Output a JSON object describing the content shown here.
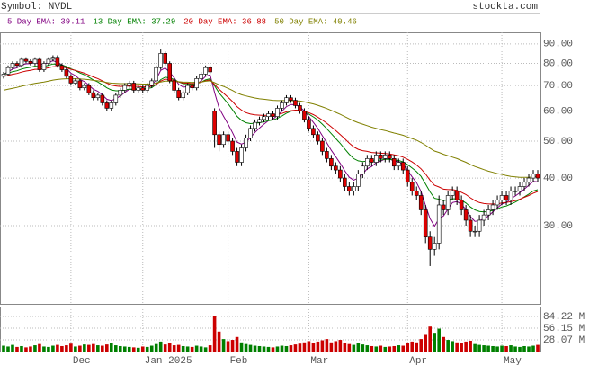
{
  "chart_data": {
    "type": "candlestick",
    "title": "Symbol: NVDL",
    "source": "stockta.com",
    "log_scale": true,
    "grid": true,
    "up_color": "#ffffff",
    "down_color": "#dd0000",
    "volume_up_color": "#008000",
    "volume_down_color": "#cc0000",
    "ylim": [
      18.7,
      96.5
    ],
    "yticks": [
      {
        "value": 90,
        "label": "90.00"
      },
      {
        "value": 80,
        "label": "80.00"
      },
      {
        "value": 70,
        "label": "70.00"
      },
      {
        "value": 60,
        "label": "60.00"
      },
      {
        "value": 50,
        "label": "50.00"
      },
      {
        "value": 40,
        "label": "40.00"
      },
      {
        "value": 30,
        "label": "30.00"
      }
    ],
    "volume_ylim": [
      0,
      108
    ],
    "volume_yticks": [
      {
        "value": 84.22,
        "label": "84.22 M"
      },
      {
        "value": 56.15,
        "label": "56.15 M"
      },
      {
        "value": 28.07,
        "label": "28.07 M"
      }
    ],
    "categories": [
      null,
      null,
      null,
      null,
      null,
      null,
      null,
      null,
      null,
      null,
      null,
      null,
      null,
      null,
      null,
      "Dec",
      null,
      null,
      null,
      null,
      null,
      null,
      null,
      null,
      null,
      null,
      null,
      null,
      null,
      null,
      null,
      "Jan 2025",
      null,
      null,
      null,
      null,
      null,
      null,
      null,
      null,
      null,
      null,
      null,
      null,
      null,
      null,
      null,
      null,
      null,
      null,
      "Feb",
      null,
      null,
      null,
      null,
      null,
      null,
      null,
      null,
      null,
      null,
      null,
      null,
      null,
      null,
      null,
      null,
      null,
      "Mar",
      null,
      null,
      null,
      null,
      null,
      null,
      null,
      null,
      null,
      null,
      null,
      null,
      null,
      null,
      null,
      null,
      null,
      null,
      null,
      null,
      null,
      "Apr",
      null,
      null,
      null,
      null,
      null,
      null,
      null,
      null,
      null,
      null,
      null,
      null,
      null,
      null,
      null,
      null,
      null,
      null,
      null,
      null,
      "May",
      null,
      null,
      null,
      null,
      null,
      null,
      null,
      null
    ],
    "open": [
      74,
      75,
      78,
      80,
      79,
      82,
      81,
      80,
      82,
      77,
      80,
      82,
      83,
      79,
      77,
      74,
      71,
      72,
      69,
      70,
      67,
      65,
      66,
      63,
      61,
      63,
      66,
      68,
      70,
      71,
      68,
      69,
      68,
      70,
      72,
      78,
      85,
      80,
      72,
      68,
      65,
      67,
      70,
      69,
      73,
      75,
      78,
      60,
      52,
      49,
      52,
      50,
      47,
      44,
      48,
      51,
      54,
      56,
      57,
      58,
      59,
      58,
      61,
      63,
      65,
      64,
      62,
      60,
      57,
      54,
      52,
      50,
      47,
      45,
      43,
      42,
      40,
      38,
      37,
      38,
      41,
      43,
      45,
      44,
      46,
      45,
      46,
      45,
      43,
      44,
      42,
      39,
      37,
      36,
      33,
      28,
      26,
      27,
      34,
      33,
      36,
      37,
      35,
      33,
      31,
      29,
      29,
      31,
      32,
      33,
      34,
      35,
      36,
      35,
      37,
      37,
      38,
      39,
      40,
      41
    ],
    "high": [
      76,
      79,
      81,
      81,
      83,
      83,
      82,
      83,
      83,
      81,
      83,
      84,
      84,
      80,
      78,
      75,
      73,
      73,
      71,
      71,
      68,
      67,
      67,
      64,
      64,
      67,
      69,
      71,
      72,
      72,
      70,
      70,
      71,
      73,
      79,
      87,
      86,
      81,
      73,
      69,
      68,
      71,
      71,
      74,
      76,
      79,
      79,
      61,
      53,
      53,
      53,
      51,
      48,
      49,
      52,
      55,
      57,
      58,
      59,
      60,
      60,
      62,
      64,
      66,
      66,
      65,
      63,
      61,
      58,
      55,
      53,
      51,
      48,
      46,
      44,
      43,
      41,
      39,
      39,
      42,
      44,
      46,
      46,
      47,
      47,
      47,
      47,
      46,
      45,
      45,
      43,
      40,
      38,
      37,
      34,
      29,
      28,
      36,
      35,
      37,
      38,
      38,
      36,
      34,
      32,
      30,
      32,
      33,
      34,
      35,
      36,
      37,
      37,
      38,
      38,
      39,
      40,
      41,
      42,
      42
    ],
    "low": [
      73,
      74,
      77,
      78,
      78,
      80,
      79,
      79,
      76,
      76,
      79,
      81,
      78,
      76,
      73,
      70,
      70,
      68,
      68,
      66,
      64,
      64,
      62,
      60,
      60,
      62,
      65,
      67,
      69,
      67,
      67,
      67,
      67,
      69,
      71,
      77,
      79,
      71,
      67,
      64,
      64,
      66,
      68,
      68,
      72,
      74,
      75,
      48,
      47,
      48,
      49,
      46,
      43,
      43,
      47,
      50,
      53,
      55,
      56,
      57,
      57,
      57,
      60,
      62,
      63,
      61,
      59,
      56,
      53,
      51,
      49,
      46,
      44,
      42,
      41,
      39,
      37,
      36,
      36,
      37,
      40,
      42,
      43,
      43,
      44,
      44,
      44,
      42,
      42,
      41,
      38,
      36,
      35,
      32,
      27,
      23.5,
      25,
      26,
      32,
      32,
      35,
      34,
      32,
      30,
      28,
      28,
      28,
      30,
      31,
      32,
      33,
      34,
      34,
      34,
      36,
      36,
      37,
      38,
      39,
      39
    ],
    "close": [
      75,
      78,
      80,
      79,
      82,
      81,
      80,
      82,
      77,
      80,
      82,
      83,
      79,
      77,
      74,
      71,
      72,
      69,
      70,
      67,
      65,
      66,
      63,
      61,
      63,
      66,
      68,
      70,
      71,
      68,
      69,
      68,
      70,
      72,
      78,
      85,
      80,
      72,
      68,
      65,
      67,
      70,
      69,
      73,
      75,
      78,
      76,
      52,
      49,
      52,
      50,
      47,
      44,
      48,
      51,
      54,
      56,
      57,
      58,
      59,
      58,
      61,
      63,
      65,
      64,
      62,
      60,
      57,
      54,
      52,
      50,
      47,
      45,
      43,
      42,
      40,
      38,
      37,
      38,
      41,
      43,
      45,
      44,
      46,
      45,
      46,
      45,
      43,
      44,
      42,
      39,
      37,
      36,
      33,
      28,
      26,
      27,
      34,
      33,
      36,
      37,
      35,
      33,
      31,
      29,
      29,
      31,
      32,
      33,
      34,
      35,
      36,
      35,
      37,
      37,
      38,
      39,
      40,
      41,
      40
    ],
    "volume": [
      14,
      12,
      16,
      11,
      13,
      10,
      12,
      15,
      18,
      12,
      11,
      14,
      16,
      13,
      15,
      19,
      12,
      14,
      17,
      16,
      18,
      15,
      14,
      17,
      20,
      15,
      13,
      12,
      11,
      10,
      9,
      12,
      11,
      14,
      18,
      24,
      17,
      20,
      15,
      16,
      13,
      12,
      11,
      14,
      12,
      10,
      15,
      86,
      48,
      30,
      25,
      28,
      35,
      22,
      18,
      16,
      14,
      13,
      12,
      11,
      10,
      12,
      14,
      13,
      15,
      17,
      19,
      22,
      25,
      20,
      24,
      27,
      30,
      22,
      25,
      28,
      20,
      18,
      16,
      21,
      17,
      15,
      13,
      12,
      14,
      11,
      12,
      13,
      15,
      14,
      20,
      24,
      22,
      30,
      40,
      60,
      45,
      55,
      35,
      28,
      25,
      22,
      20,
      24,
      26,
      18,
      16,
      15,
      14,
      13,
      12,
      14,
      13,
      15,
      12,
      11,
      13,
      12,
      14,
      16
    ],
    "series": [
      {
        "name": "5 Day EMA: 39.11",
        "color": "#800080",
        "values": [
          75,
          76,
          77.3,
          77.9,
          79.3,
          79.8,
          79.9,
          80.6,
          79.4,
          79.6,
          80.4,
          81.3,
          80.5,
          79.3,
          77.6,
          75.4,
          74.3,
          72.5,
          71.7,
          70.1,
          68.4,
          67.6,
          66.1,
          64.4,
          63.9,
          64.6,
          65.7,
          67.1,
          68.4,
          68.3,
          68.5,
          68.3,
          68.9,
          69.9,
          72.6,
          76.7,
          77.8,
          75.9,
          73.3,
          70.5,
          69.3,
          69.5,
          69.3,
          70.5,
          72,
          74,
          74.7,
          67.1,
          61.1,
          58.1,
          55.4,
          52.6,
          49.7,
          49.1,
          49.7,
          51.1,
          52.7,
          54.1,
          55.4,
          56.6,
          57.1,
          58.4,
          59.9,
          61.6,
          62.4,
          62.3,
          61.5,
          60,
          58,
          56,
          54,
          51.7,
          49.5,
          47.3,
          45.5,
          43.7,
          41.8,
          40.2,
          39.5,
          40,
          41,
          42.3,
          42.9,
          43.9,
          44.3,
          44.9,
          44.9,
          44.3,
          44.2,
          43.5,
          42,
          40.3,
          38.9,
          36.9,
          33.9,
          31.3,
          29.9,
          31.3,
          31.8,
          33.2,
          34.5,
          34.7,
          34.1,
          33.1,
          31.7,
          30.8,
          30.9,
          31.3,
          31.8,
          32.6,
          33.4,
          34.2,
          34.5,
          35.3,
          35.9,
          36.6,
          37.4,
          38.3,
          39.2,
          39.11
        ]
      },
      {
        "name": "13 Day EMA: 37.29",
        "color": "#008000",
        "values": [
          75,
          75.4,
          76.1,
          76.5,
          77.3,
          77.8,
          78.1,
          78.7,
          78.4,
          78.6,
          79.1,
          79.7,
          79.6,
          79.2,
          78.5,
          77.4,
          76.6,
          75.5,
          74.7,
          73.6,
          72.4,
          71.5,
          70.3,
          69,
          68.1,
          67.8,
          67.8,
          68.1,
          68.5,
          68.4,
          68.5,
          68.4,
          68.7,
          69.1,
          70.4,
          72.5,
          73.6,
          73.3,
          72.6,
          71.5,
          70.8,
          70.7,
          70.5,
          70.8,
          71.4,
          72.4,
          72.9,
          69.9,
          66.9,
          64.8,
          62.7,
          60.4,
          58.1,
          56.7,
          55.9,
          55.6,
          55.7,
          55.9,
          56.2,
          56.6,
          56.8,
          57.4,
          58.2,
          59.2,
          59.9,
          60.2,
          60.2,
          59.7,
          58.9,
          57.9,
          56.8,
          55.4,
          53.9,
          52.3,
          50.8,
          49.3,
          47.7,
          46.2,
          45,
          44.4,
          44.2,
          44.3,
          44.3,
          44.5,
          44.6,
          44.8,
          44.8,
          44.6,
          44.5,
          44.1,
          43.4,
          42.5,
          41.6,
          40.4,
          38.6,
          36.8,
          35.4,
          35.2,
          34.9,
          35.1,
          35.3,
          35.3,
          35,
          34.4,
          33.6,
          33,
          32.7,
          32.6,
          32.7,
          32.9,
          33.2,
          33.6,
          33.8,
          34.2,
          34.6,
          35.1,
          35.7,
          36.3,
          37,
          37.29
        ]
      },
      {
        "name": "20 Day EMA: 36.88",
        "color": "#cc0000",
        "values": [
          74,
          74.4,
          74.9,
          75.3,
          75.9,
          76.4,
          76.7,
          77.2,
          77.2,
          77.5,
          77.9,
          78.4,
          78.5,
          78.3,
          77.9,
          77.2,
          76.7,
          76,
          75.4,
          74.6,
          73.7,
          73,
          72,
          71,
          70.2,
          69.8,
          69.6,
          69.7,
          69.8,
          69.6,
          69.6,
          69.4,
          69.5,
          69.7,
          70.5,
          71.9,
          72.7,
          72.6,
          72.2,
          71.5,
          71.1,
          71,
          70.8,
          71,
          71.4,
          72,
          72.4,
          70.4,
          68.4,
          66.8,
          65.2,
          63.5,
          61.6,
          60.3,
          59.4,
          58.9,
          58.6,
          58.5,
          58.4,
          58.5,
          58.4,
          58.7,
          59.1,
          59.7,
          60.1,
          60.3,
          60.2,
          59.9,
          59.4,
          58.7,
          57.8,
          56.8,
          55.7,
          54.5,
          53.3,
          52,
          50.7,
          49.4,
          48.3,
          47.6,
          47.2,
          47,
          46.7,
          46.6,
          46.5,
          46.4,
          46.3,
          46,
          45.8,
          45.4,
          44.8,
          44.1,
          43.3,
          42.3,
          41,
          39.5,
          38.3,
          37.9,
          37.4,
          37.3,
          37.3,
          37.1,
          36.7,
          36.2,
          35.5,
          34.9,
          34.5,
          34.3,
          34.2,
          34.2,
          34.2,
          34.4,
          34.5,
          34.7,
          34.9,
          35.2,
          35.6,
          36,
          36.5,
          36.88
        ]
      },
      {
        "name": "50 Day EMA: 40.46",
        "color": "#808000",
        "values": [
          68,
          68.4,
          68.8,
          69.2,
          69.7,
          70.1,
          70.5,
          70.9,
          71.2,
          71.5,
          71.9,
          72.3,
          72.6,
          72.8,
          72.9,
          72.9,
          72.9,
          72.8,
          72.7,
          72.5,
          72.2,
          72,
          71.7,
          71.3,
          71,
          70.9,
          70.8,
          70.8,
          70.8,
          70.7,
          70.7,
          70.6,
          70.6,
          70.7,
          71,
          71.5,
          71.9,
          71.9,
          71.8,
          71.6,
          71.4,
          71.4,
          71.3,
          71.4,
          71.5,
          71.8,
          72,
          71.2,
          70.3,
          69.6,
          68.8,
          67.9,
          66.9,
          66.2,
          65.7,
          65.3,
          64.9,
          64.6,
          64.4,
          64.2,
          64,
          63.9,
          63.9,
          63.9,
          63.9,
          63.8,
          63.7,
          63.4,
          63,
          62.6,
          62.1,
          61.5,
          60.9,
          60.2,
          59.5,
          58.8,
          58,
          57.2,
          56.5,
          55.9,
          55.4,
          54.9,
          54.4,
          54,
          53.6,
          53.3,
          52.9,
          52.5,
          52.2,
          51.8,
          51.3,
          50.8,
          50.3,
          49.6,
          48.8,
          47.9,
          47.1,
          46.7,
          46.2,
          45.8,
          45.4,
          45,
          44.5,
          44,
          43.4,
          42.9,
          42.5,
          42.1,
          41.7,
          41.4,
          41.1,
          40.9,
          40.6,
          40.4,
          40.3,
          40.2,
          40.2,
          40.2,
          40.3,
          40.46
        ]
      }
    ]
  }
}
